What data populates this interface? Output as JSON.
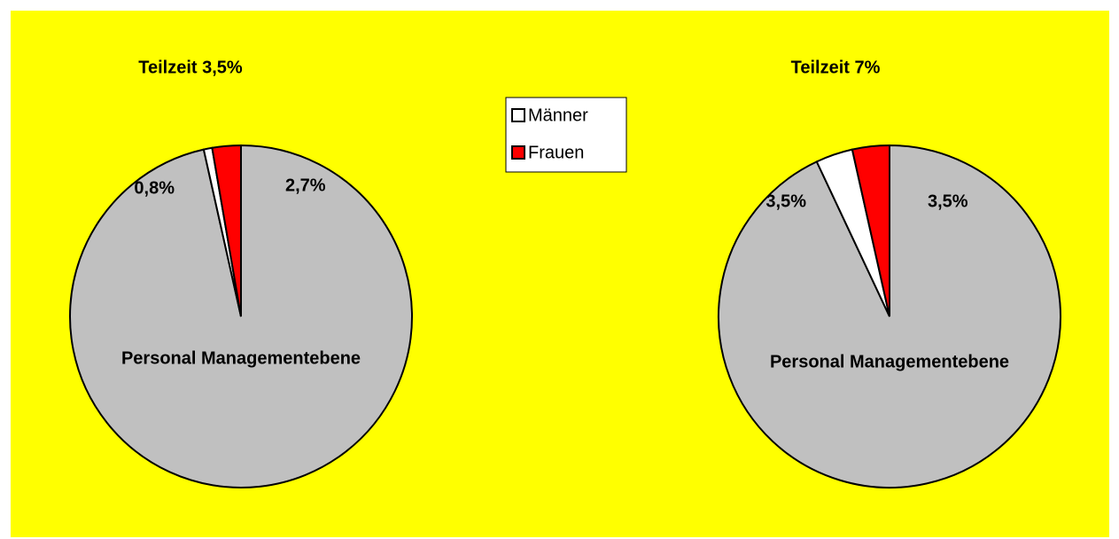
{
  "chart_data": [
    {
      "type": "pie",
      "title": "Teilzeit 3,5%",
      "categories": [
        "Männer",
        "Frauen"
      ],
      "values": [
        0.8,
        2.7
      ],
      "value_labels": [
        "0,8%",
        "2,7%"
      ],
      "colors": [
        "#ffffff",
        "#ff0000"
      ],
      "rest": {
        "name": "Personal Managementebene",
        "value": 96.5,
        "color": "#c0c0c0"
      }
    },
    {
      "type": "pie",
      "title": "Teilzeit 7%",
      "categories": [
        "Männer",
        "Frauen"
      ],
      "values": [
        3.5,
        3.5
      ],
      "value_labels": [
        "3,5%",
        "3,5%"
      ],
      "colors": [
        "#ffffff",
        "#ff0000"
      ],
      "rest": {
        "name": "Personal Managementebene",
        "value": 93,
        "color": "#c0c0c0"
      }
    }
  ]
}
